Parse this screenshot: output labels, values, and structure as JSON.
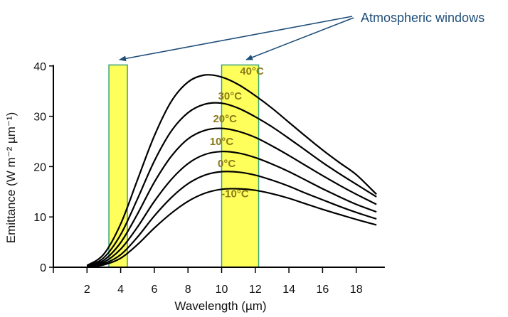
{
  "chart_data": {
    "type": "line",
    "title": "",
    "xlabel": "Wavelength (µm)",
    "ylabel": "Emittance (W m⁻² µm⁻¹)",
    "xlim": [
      0,
      20
    ],
    "ylim": [
      0,
      40
    ],
    "x_ticks": [
      2,
      4,
      6,
      8,
      10,
      12,
      14,
      16,
      18
    ],
    "y_ticks": [
      0,
      10,
      20,
      30,
      40
    ],
    "grid": false,
    "series": [
      {
        "name": "-10°C",
        "x": [
          2,
          3,
          4,
          5,
          6,
          7,
          8,
          9,
          10,
          11,
          12,
          13,
          14,
          15,
          16,
          17,
          18,
          19.2
        ],
        "y": [
          0.1,
          0.5,
          1.8,
          4.5,
          7.8,
          10.7,
          13.1,
          14.7,
          15.5,
          15.6,
          15.3,
          14.6,
          13.7,
          12.6,
          11.5,
          10.5,
          9.5,
          8.4
        ]
      },
      {
        "name": "0°C",
        "x": [
          2,
          3,
          4,
          5,
          6,
          7,
          8,
          9,
          10,
          11,
          12,
          13,
          14,
          15,
          16,
          17,
          18,
          19.2
        ],
        "y": [
          0.1,
          0.7,
          2.5,
          6.0,
          10.2,
          13.8,
          16.6,
          18.3,
          19.0,
          18.9,
          18.3,
          17.3,
          16.1,
          14.7,
          13.4,
          12.1,
          10.9,
          9.6
        ]
      },
      {
        "name": "10°C",
        "x": [
          2,
          3,
          4,
          5,
          6,
          7,
          8,
          9,
          10,
          11,
          12,
          13,
          14,
          15,
          16,
          17,
          18,
          19.2
        ],
        "y": [
          0.15,
          1.0,
          3.6,
          8.0,
          13.1,
          17.4,
          20.6,
          22.4,
          23.0,
          22.7,
          21.8,
          20.5,
          19.0,
          17.3,
          15.6,
          14.0,
          12.5,
          11.0
        ]
      },
      {
        "name": "20°C",
        "x": [
          2,
          3,
          4,
          5,
          6,
          7,
          8,
          9,
          10,
          11,
          12,
          13,
          14,
          15,
          16,
          17,
          18,
          19.2
        ],
        "y": [
          0.2,
          1.4,
          4.9,
          10.6,
          16.9,
          22.0,
          25.5,
          27.2,
          27.6,
          27.0,
          25.8,
          24.1,
          22.2,
          20.2,
          18.2,
          16.3,
          14.5,
          12.5
        ]
      },
      {
        "name": "30°C",
        "x": [
          2,
          3,
          4,
          5,
          6,
          7,
          8,
          9,
          10,
          11,
          12,
          13,
          14,
          15,
          16,
          17,
          18,
          19.2
        ],
        "y": [
          0.25,
          1.9,
          6.5,
          13.6,
          21.1,
          27.0,
          30.7,
          32.4,
          32.6,
          31.6,
          29.9,
          27.9,
          25.6,
          23.2,
          20.8,
          18.6,
          16.5,
          14.0
        ]
      },
      {
        "name": "40°C",
        "x": [
          2,
          3,
          4,
          5,
          6,
          7,
          8,
          9,
          10,
          11,
          12,
          13,
          14,
          15,
          16,
          17,
          18,
          19.2
        ],
        "y": [
          0.35,
          2.6,
          8.6,
          17.4,
          26.1,
          32.9,
          36.8,
          38.2,
          37.8,
          36.3,
          34.1,
          31.6,
          28.8,
          26.0,
          23.3,
          20.8,
          18.4,
          14.5
        ]
      }
    ],
    "series_label_texts": [
      "-10°C",
      "0°C",
      "10°C",
      "20°C",
      "30°C",
      "40°C"
    ],
    "highlight_bands": [
      {
        "x0": 3.3,
        "x1": 4.4,
        "y0": 0,
        "y1": 40.2
      },
      {
        "x0": 10.0,
        "x1": 12.2,
        "y0": 0,
        "y1": 40.2
      }
    ],
    "annotation": {
      "text": "Atmospheric windows"
    },
    "colors": {
      "curve": "#000000",
      "band_fill": "#ffff33",
      "band_stroke": "#3aa37a",
      "annotation": "#1f4e79",
      "curve_label": "#8a7a1a"
    }
  }
}
